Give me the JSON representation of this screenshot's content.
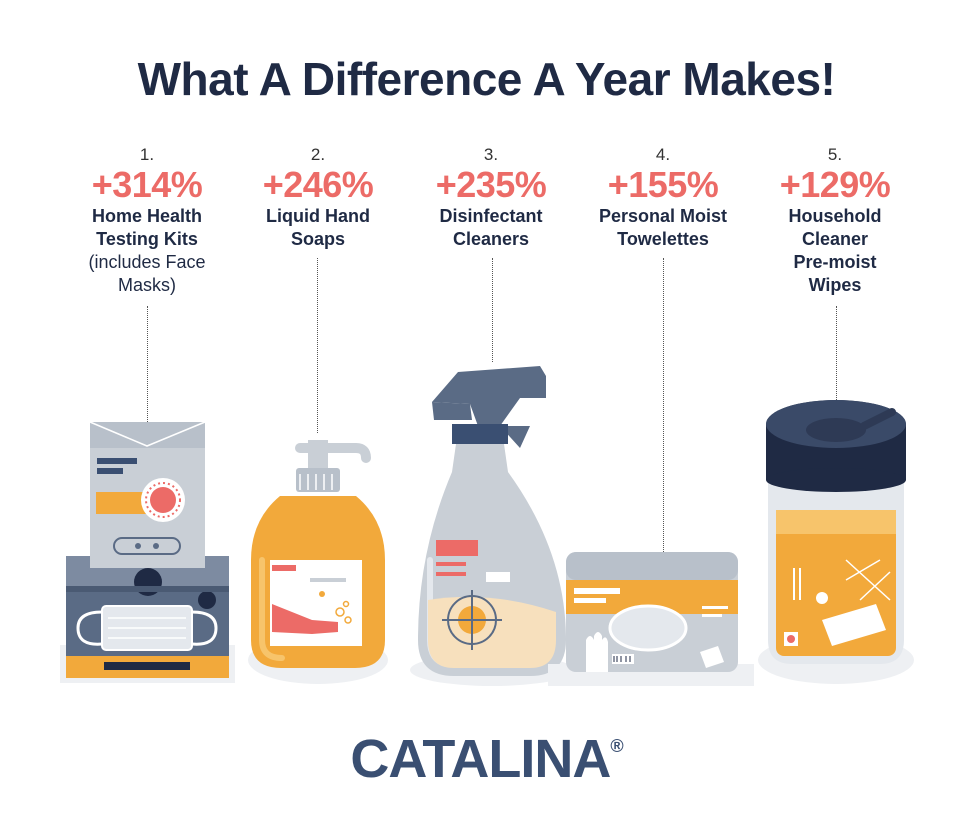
{
  "title": "What A Difference A Year Makes!",
  "items": [
    {
      "rank": "1.",
      "change": "+314%",
      "label_lines": [
        "Home Health",
        "Testing Kits"
      ],
      "sub_lines": [
        "(includes Face",
        "Masks)"
      ],
      "icon": "test-kit-and-mask-icon"
    },
    {
      "rank": "2.",
      "change": "+246%",
      "label_lines": [
        "Liquid Hand",
        "Soaps"
      ],
      "sub_lines": [],
      "icon": "hand-soap-pump-icon"
    },
    {
      "rank": "3.",
      "change": "+235%",
      "label_lines": [
        "Disinfectant",
        "Cleaners"
      ],
      "sub_lines": [],
      "icon": "spray-bottle-icon"
    },
    {
      "rank": "4.",
      "change": "+155%",
      "label_lines": [
        "Personal Moist",
        "Towelettes"
      ],
      "sub_lines": [],
      "icon": "towelette-pack-icon"
    },
    {
      "rank": "5.",
      "change": "+129%",
      "label_lines": [
        "Household",
        "Cleaner",
        "Pre-moist",
        "Wipes"
      ],
      "sub_lines": [],
      "icon": "wipes-canister-icon"
    }
  ],
  "brand": "CATALINA",
  "brand_mark": "®",
  "colors": {
    "navy": "#1f2a44",
    "coral": "#ec6b67",
    "orange": "#f2a93b",
    "gray": "#c9cfd6",
    "slate": "#5a6b85",
    "brand": "#3a4f72"
  }
}
